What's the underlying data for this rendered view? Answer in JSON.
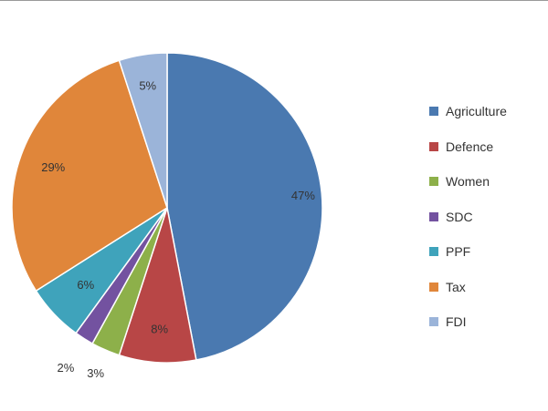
{
  "chart_data": {
    "type": "pie",
    "title": "",
    "categories": [
      "Agriculture",
      "Defence",
      "Women",
      "SDC",
      "PPF",
      "Tax",
      "FDI"
    ],
    "values": [
      47,
      8,
      3,
      2,
      6,
      29,
      5
    ],
    "labels": [
      "47%",
      "8%",
      "3%",
      "2%",
      "6%",
      "29%",
      "5%"
    ],
    "colors": [
      "#4a79b0",
      "#b84646",
      "#8db04a",
      "#7352a0",
      "#3fa3bb",
      "#e0863a",
      "#9bb4d9"
    ],
    "start_angle": "12 o'clock",
    "direction": "clockwise",
    "legend_position": "right"
  }
}
